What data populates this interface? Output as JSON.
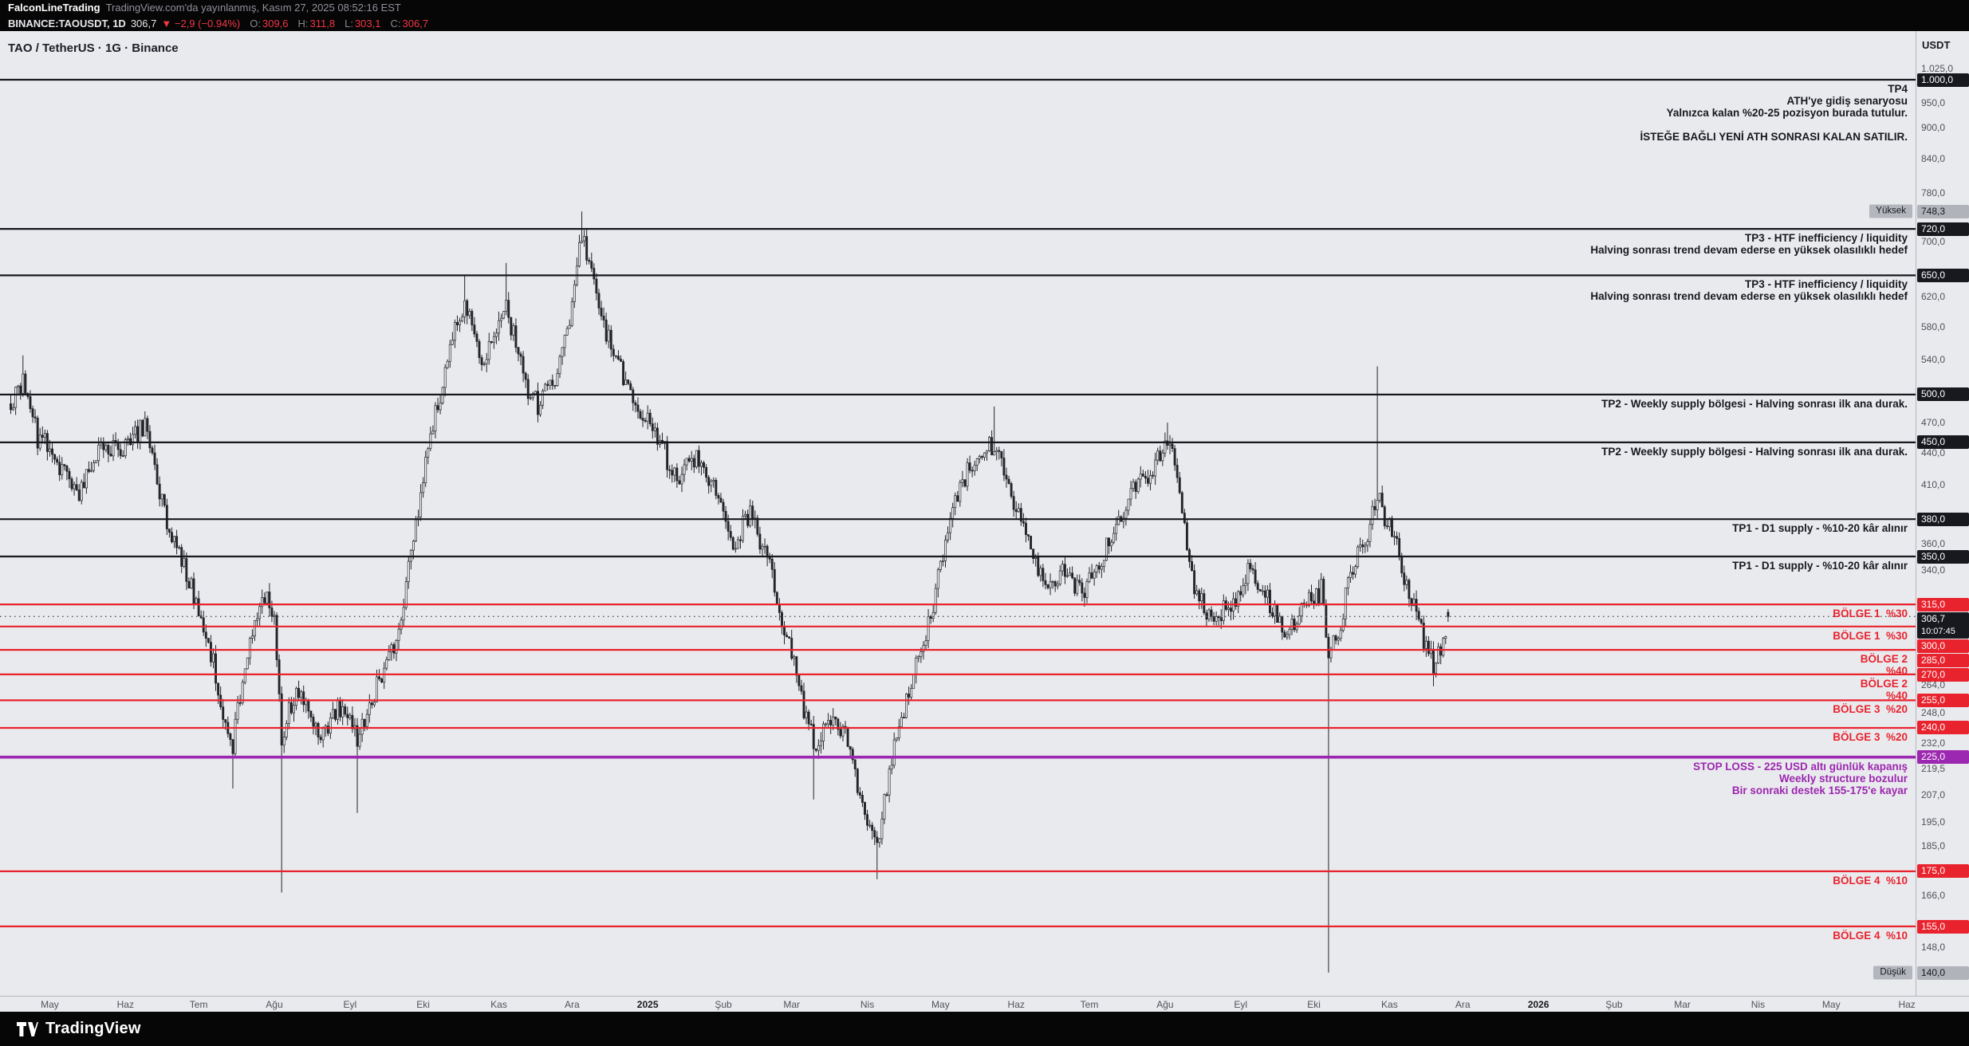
{
  "header": {
    "publisher": "FalconLineTrading",
    "published_info": "TradingView.com'da yayınlanmış, Kasım 27, 2025 08:52:16 EST",
    "symbol_line": {
      "symbol": "BINANCE:TAOUSDT, 1D",
      "price": "306,7",
      "change": "▼ −2,9 (−0.94%)",
      "o_label": "O:",
      "o": "309,6",
      "h_label": "H:",
      "h": "311,8",
      "l_label": "L:",
      "l": "303,1",
      "c_label": "C:",
      "c": "306,7"
    }
  },
  "legend": "TAO / TetherUS · 1G · Binance",
  "price_scale": {
    "currency": "USDT",
    "ticks": [
      {
        "label": "1.025,0",
        "price": 1025
      },
      {
        "label": "950,0",
        "price": 950
      },
      {
        "label": "900,0",
        "price": 900
      },
      {
        "label": "840,0",
        "price": 840
      },
      {
        "label": "780,0",
        "price": 780
      },
      {
        "label": "700,0",
        "price": 700
      },
      {
        "label": "620,0",
        "price": 620
      },
      {
        "label": "580,0",
        "price": 580
      },
      {
        "label": "540,0",
        "price": 540
      },
      {
        "label": "470,0",
        "price": 470
      },
      {
        "label": "440,0",
        "price": 440
      },
      {
        "label": "410,0",
        "price": 410
      },
      {
        "label": "360,0",
        "price": 360
      },
      {
        "label": "340,0",
        "price": 340
      },
      {
        "label": "264,0",
        "price": 264
      },
      {
        "label": "248,0",
        "price": 248
      },
      {
        "label": "232,0",
        "price": 232
      },
      {
        "label": "219,5",
        "price": 219.5
      },
      {
        "label": "207,0",
        "price": 207
      },
      {
        "label": "195,0",
        "price": 195
      },
      {
        "label": "185,0",
        "price": 185
      },
      {
        "label": "166,0",
        "price": 166
      },
      {
        "label": "148,0",
        "price": 148
      }
    ],
    "current": {
      "price": 306.7,
      "label": "306,7",
      "countdown": "10:07:45"
    },
    "high_marker": {
      "label": "Yüksek",
      "price": 748.3,
      "price_label": "748,3"
    },
    "low_marker": {
      "label": "Düşük",
      "price": 140,
      "price_label": "140,0"
    }
  },
  "levels": [
    {
      "price": 1000,
      "scale_label": "1.000,0",
      "color": "#17191f"
    },
    {
      "price": 720,
      "scale_label": "720,0",
      "color": "#17191f"
    },
    {
      "price": 650,
      "scale_label": "650,0",
      "color": "#17191f"
    },
    {
      "price": 500,
      "scale_label": "500,0",
      "color": "#17191f"
    },
    {
      "price": 450,
      "scale_label": "450,0",
      "color": "#17191f"
    },
    {
      "price": 380,
      "scale_label": "380,0",
      "color": "#17191f"
    },
    {
      "price": 350,
      "scale_label": "350,0",
      "color": "#17191f"
    },
    {
      "price": 315,
      "scale_label": "315,0",
      "color": "#e9232e"
    },
    {
      "price": 300,
      "scale_label": "300,0",
      "color": "#e9232e"
    },
    {
      "price": 285,
      "scale_label": "285,0",
      "color": "#e9232e"
    },
    {
      "price": 270,
      "scale_label": "270,0",
      "color": "#e9232e"
    },
    {
      "price": 255,
      "scale_label": "255,0",
      "color": "#e9232e"
    },
    {
      "price": 240,
      "scale_label": "240,0",
      "color": "#e9232e"
    },
    {
      "price": 225,
      "scale_label": "225,0",
      "color": "#9c27b0",
      "width": 3.6
    },
    {
      "price": 175,
      "scale_label": "175,0",
      "color": "#e9232e"
    },
    {
      "price": 155,
      "scale_label": "155,0",
      "color": "#e9232e"
    }
  ],
  "annotations": [
    {
      "price": 1000,
      "color": "#17191f",
      "lines": [
        "TP4",
        "ATH'ye gidiş senaryosu",
        "Yalnızca kalan %20-25 pozisyon burada tutulur.",
        "",
        "İSTEĞE BAĞLI YENİ ATH SONRASI KALAN SATILIR."
      ]
    },
    {
      "price": 720,
      "color": "#17191f",
      "lines": [
        "TP3 - HTF inefficiency / liquidity",
        "Halving sonrası trend devam ederse en yüksek olasılıklı hedef"
      ]
    },
    {
      "price": 650,
      "color": "#17191f",
      "lines": [
        "TP3 - HTF inefficiency / liquidity",
        "Halving sonrası trend devam ederse en yüksek olasılıklı hedef"
      ]
    },
    {
      "price": 500,
      "color": "#17191f",
      "lines": [
        "TP2 - Weekly supply bölgesi - Halving sonrası ilk ana durak."
      ]
    },
    {
      "price": 450,
      "color": "#17191f",
      "lines": [
        "TP2 - Weekly supply bölgesi - Halving sonrası ilk ana durak."
      ]
    },
    {
      "price": 380,
      "color": "#17191f",
      "lines": [
        "TP1 - D1 supply - %10-20 kâr alınır"
      ]
    },
    {
      "price": 350,
      "color": "#17191f",
      "lines": [
        "TP1 - D1 supply - %10-20 kâr alınır"
      ]
    },
    {
      "price": 315,
      "color": "#e9232e",
      "lines": [
        "BÖLGE 1  %30"
      ]
    },
    {
      "price": 300,
      "color": "#e9232e",
      "lines": [
        "BÖLGE 1  %30"
      ]
    },
    {
      "price": 285,
      "color": "#e9232e",
      "lines": [
        "BÖLGE 2",
        "%40"
      ]
    },
    {
      "price": 270,
      "color": "#e9232e",
      "lines": [
        "BÖLGE 2",
        "%40"
      ]
    },
    {
      "price": 255,
      "color": "#e9232e",
      "lines": [
        "BÖLGE 3  %20"
      ]
    },
    {
      "price": 240,
      "color": "#e9232e",
      "lines": [
        "BÖLGE 3  %20"
      ]
    },
    {
      "price": 225,
      "color": "#9c27b0",
      "lines": [
        "STOP LOSS - 225 USD altı günlük kapanış",
        "Weekly structure bozulur",
        "Bir sonraki destek 155-175'e kayar"
      ]
    },
    {
      "price": 175,
      "color": "#e9232e",
      "lines": [
        "BÖLGE 4  %10"
      ]
    },
    {
      "price": 155,
      "color": "#e9232e",
      "lines": [
        "BÖLGE 4  %10"
      ]
    }
  ],
  "time_axis": {
    "months": [
      {
        "label": "May",
        "d": 16
      },
      {
        "label": "Haz",
        "d": 47
      },
      {
        "label": "Tem",
        "d": 77
      },
      {
        "label": "Ağu",
        "d": 108
      },
      {
        "label": "Eyl",
        "d": 139
      },
      {
        "label": "Eki",
        "d": 169
      },
      {
        "label": "Kas",
        "d": 200
      },
      {
        "label": "Ara",
        "d": 230
      },
      {
        "label": "2025",
        "d": 261,
        "year": true
      },
      {
        "label": "Şub",
        "d": 292
      },
      {
        "label": "Mar",
        "d": 320
      },
      {
        "label": "Nis",
        "d": 351
      },
      {
        "label": "May",
        "d": 381
      },
      {
        "label": "Haz",
        "d": 412
      },
      {
        "label": "Tem",
        "d": 442
      },
      {
        "label": "Ağu",
        "d": 473
      },
      {
        "label": "Eyl",
        "d": 504
      },
      {
        "label": "Eki",
        "d": 534
      },
      {
        "label": "Kas",
        "d": 565
      },
      {
        "label": "Ara",
        "d": 595
      },
      {
        "label": "2026",
        "d": 626,
        "year": true
      },
      {
        "label": "Şub",
        "d": 657
      },
      {
        "label": "Mar",
        "d": 685
      },
      {
        "label": "Nis",
        "d": 716
      },
      {
        "label": "May",
        "d": 746
      },
      {
        "label": "Haz",
        "d": 777
      }
    ]
  },
  "footer": {
    "brand": "TradingView"
  },
  "chart_data": {
    "type": "candlestick",
    "title": "TAO / TetherUS · 1G · Binance",
    "symbol": "BINANCE:TAOUSDT",
    "timeframe": "1D",
    "price_scale_type": "log",
    "currency": "USDT",
    "y_range": [
      140,
      1025
    ],
    "x_range_start": "Nis 2024",
    "x_range_end": "Haz 2026",
    "visible_high": 748.3,
    "visible_low": 140.0,
    "days": 589,
    "last_candle": {
      "o": 309.6,
      "h": 311.8,
      "l": 303.1,
      "c": 306.7
    },
    "change": -2.9,
    "change_pct": -0.94,
    "price_path": [
      {
        "d": 0,
        "p": 490
      },
      {
        "d": 5,
        "p": 515
      },
      {
        "d": 11,
        "p": 455
      },
      {
        "d": 16,
        "p": 445
      },
      {
        "d": 27,
        "p": 400
      },
      {
        "d": 37,
        "p": 450
      },
      {
        "d": 47,
        "p": 445
      },
      {
        "d": 55,
        "p": 470
      },
      {
        "d": 63,
        "p": 385
      },
      {
        "d": 70,
        "p": 350
      },
      {
        "d": 78,
        "p": 305
      },
      {
        "d": 83,
        "p": 278
      },
      {
        "d": 88,
        "p": 240
      },
      {
        "d": 91,
        "p": 232
      },
      {
        "d": 98,
        "p": 295
      },
      {
        "d": 104,
        "p": 322
      },
      {
        "d": 108,
        "p": 300
      },
      {
        "d": 111,
        "p": 235
      },
      {
        "d": 116,
        "p": 258
      },
      {
        "d": 119,
        "p": 262
      },
      {
        "d": 127,
        "p": 236
      },
      {
        "d": 134,
        "p": 250
      },
      {
        "d": 139,
        "p": 242
      },
      {
        "d": 142,
        "p": 233
      },
      {
        "d": 150,
        "p": 262
      },
      {
        "d": 157,
        "p": 285
      },
      {
        "d": 165,
        "p": 360
      },
      {
        "d": 173,
        "p": 470
      },
      {
        "d": 180,
        "p": 550
      },
      {
        "d": 186,
        "p": 620
      },
      {
        "d": 193,
        "p": 528
      },
      {
        "d": 198,
        "p": 568
      },
      {
        "d": 203,
        "p": 605
      },
      {
        "d": 211,
        "p": 512
      },
      {
        "d": 216,
        "p": 488
      },
      {
        "d": 224,
        "p": 528
      },
      {
        "d": 229,
        "p": 585
      },
      {
        "d": 234,
        "p": 715
      },
      {
        "d": 239,
        "p": 640
      },
      {
        "d": 247,
        "p": 540
      },
      {
        "d": 255,
        "p": 500
      },
      {
        "d": 259,
        "p": 475
      },
      {
        "d": 265,
        "p": 458
      },
      {
        "d": 273,
        "p": 412
      },
      {
        "d": 280,
        "p": 437
      },
      {
        "d": 289,
        "p": 400
      },
      {
        "d": 296,
        "p": 362
      },
      {
        "d": 303,
        "p": 385
      },
      {
        "d": 311,
        "p": 340
      },
      {
        "d": 318,
        "p": 295
      },
      {
        "d": 324,
        "p": 255
      },
      {
        "d": 329,
        "p": 232
      },
      {
        "d": 337,
        "p": 248
      },
      {
        "d": 344,
        "p": 232
      },
      {
        "d": 350,
        "p": 196
      },
      {
        "d": 355,
        "p": 186
      },
      {
        "d": 360,
        "p": 218
      },
      {
        "d": 368,
        "p": 262
      },
      {
        "d": 375,
        "p": 295
      },
      {
        "d": 379,
        "p": 325
      },
      {
        "d": 385,
        "p": 385
      },
      {
        "d": 393,
        "p": 425
      },
      {
        "d": 401,
        "p": 450
      },
      {
        "d": 409,
        "p": 412
      },
      {
        "d": 416,
        "p": 362
      },
      {
        "d": 424,
        "p": 328
      },
      {
        "d": 432,
        "p": 340
      },
      {
        "d": 439,
        "p": 322
      },
      {
        "d": 447,
        "p": 350
      },
      {
        "d": 455,
        "p": 385
      },
      {
        "d": 462,
        "p": 412
      },
      {
        "d": 469,
        "p": 428
      },
      {
        "d": 474,
        "p": 448
      },
      {
        "d": 478,
        "p": 420
      },
      {
        "d": 485,
        "p": 325
      },
      {
        "d": 493,
        "p": 305
      },
      {
        "d": 500,
        "p": 315
      },
      {
        "d": 508,
        "p": 340
      },
      {
        "d": 516,
        "p": 315
      },
      {
        "d": 524,
        "p": 295
      },
      {
        "d": 530,
        "p": 315
      },
      {
        "d": 537,
        "p": 325
      },
      {
        "d": 540,
        "p": 285
      },
      {
        "d": 544,
        "p": 295
      },
      {
        "d": 549,
        "p": 340
      },
      {
        "d": 555,
        "p": 362
      },
      {
        "d": 560,
        "p": 400
      },
      {
        "d": 567,
        "p": 362
      },
      {
        "d": 572,
        "p": 330
      },
      {
        "d": 578,
        "p": 295
      },
      {
        "d": 583,
        "p": 275
      },
      {
        "d": 586,
        "p": 288
      },
      {
        "d": 589,
        "p": 306.7
      }
    ],
    "wick_events": [
      {
        "d": 5,
        "high": 545
      },
      {
        "d": 91,
        "low": 210
      },
      {
        "d": 111,
        "low": 167
      },
      {
        "d": 142,
        "low": 199
      },
      {
        "d": 186,
        "high": 651
      },
      {
        "d": 203,
        "high": 668
      },
      {
        "d": 234,
        "high": 748.3
      },
      {
        "d": 329,
        "low": 205
      },
      {
        "d": 355,
        "low": 172
      },
      {
        "d": 403,
        "high": 487
      },
      {
        "d": 474,
        "high": 470
      },
      {
        "d": 540,
        "low": 140
      },
      {
        "d": 560,
        "high": 532
      },
      {
        "d": 583,
        "low": 263
      }
    ],
    "horizontal_levels": [
      1000,
      720,
      650,
      500,
      450,
      380,
      350,
      315,
      300,
      285,
      270,
      255,
      240,
      225,
      175,
      155
    ]
  }
}
